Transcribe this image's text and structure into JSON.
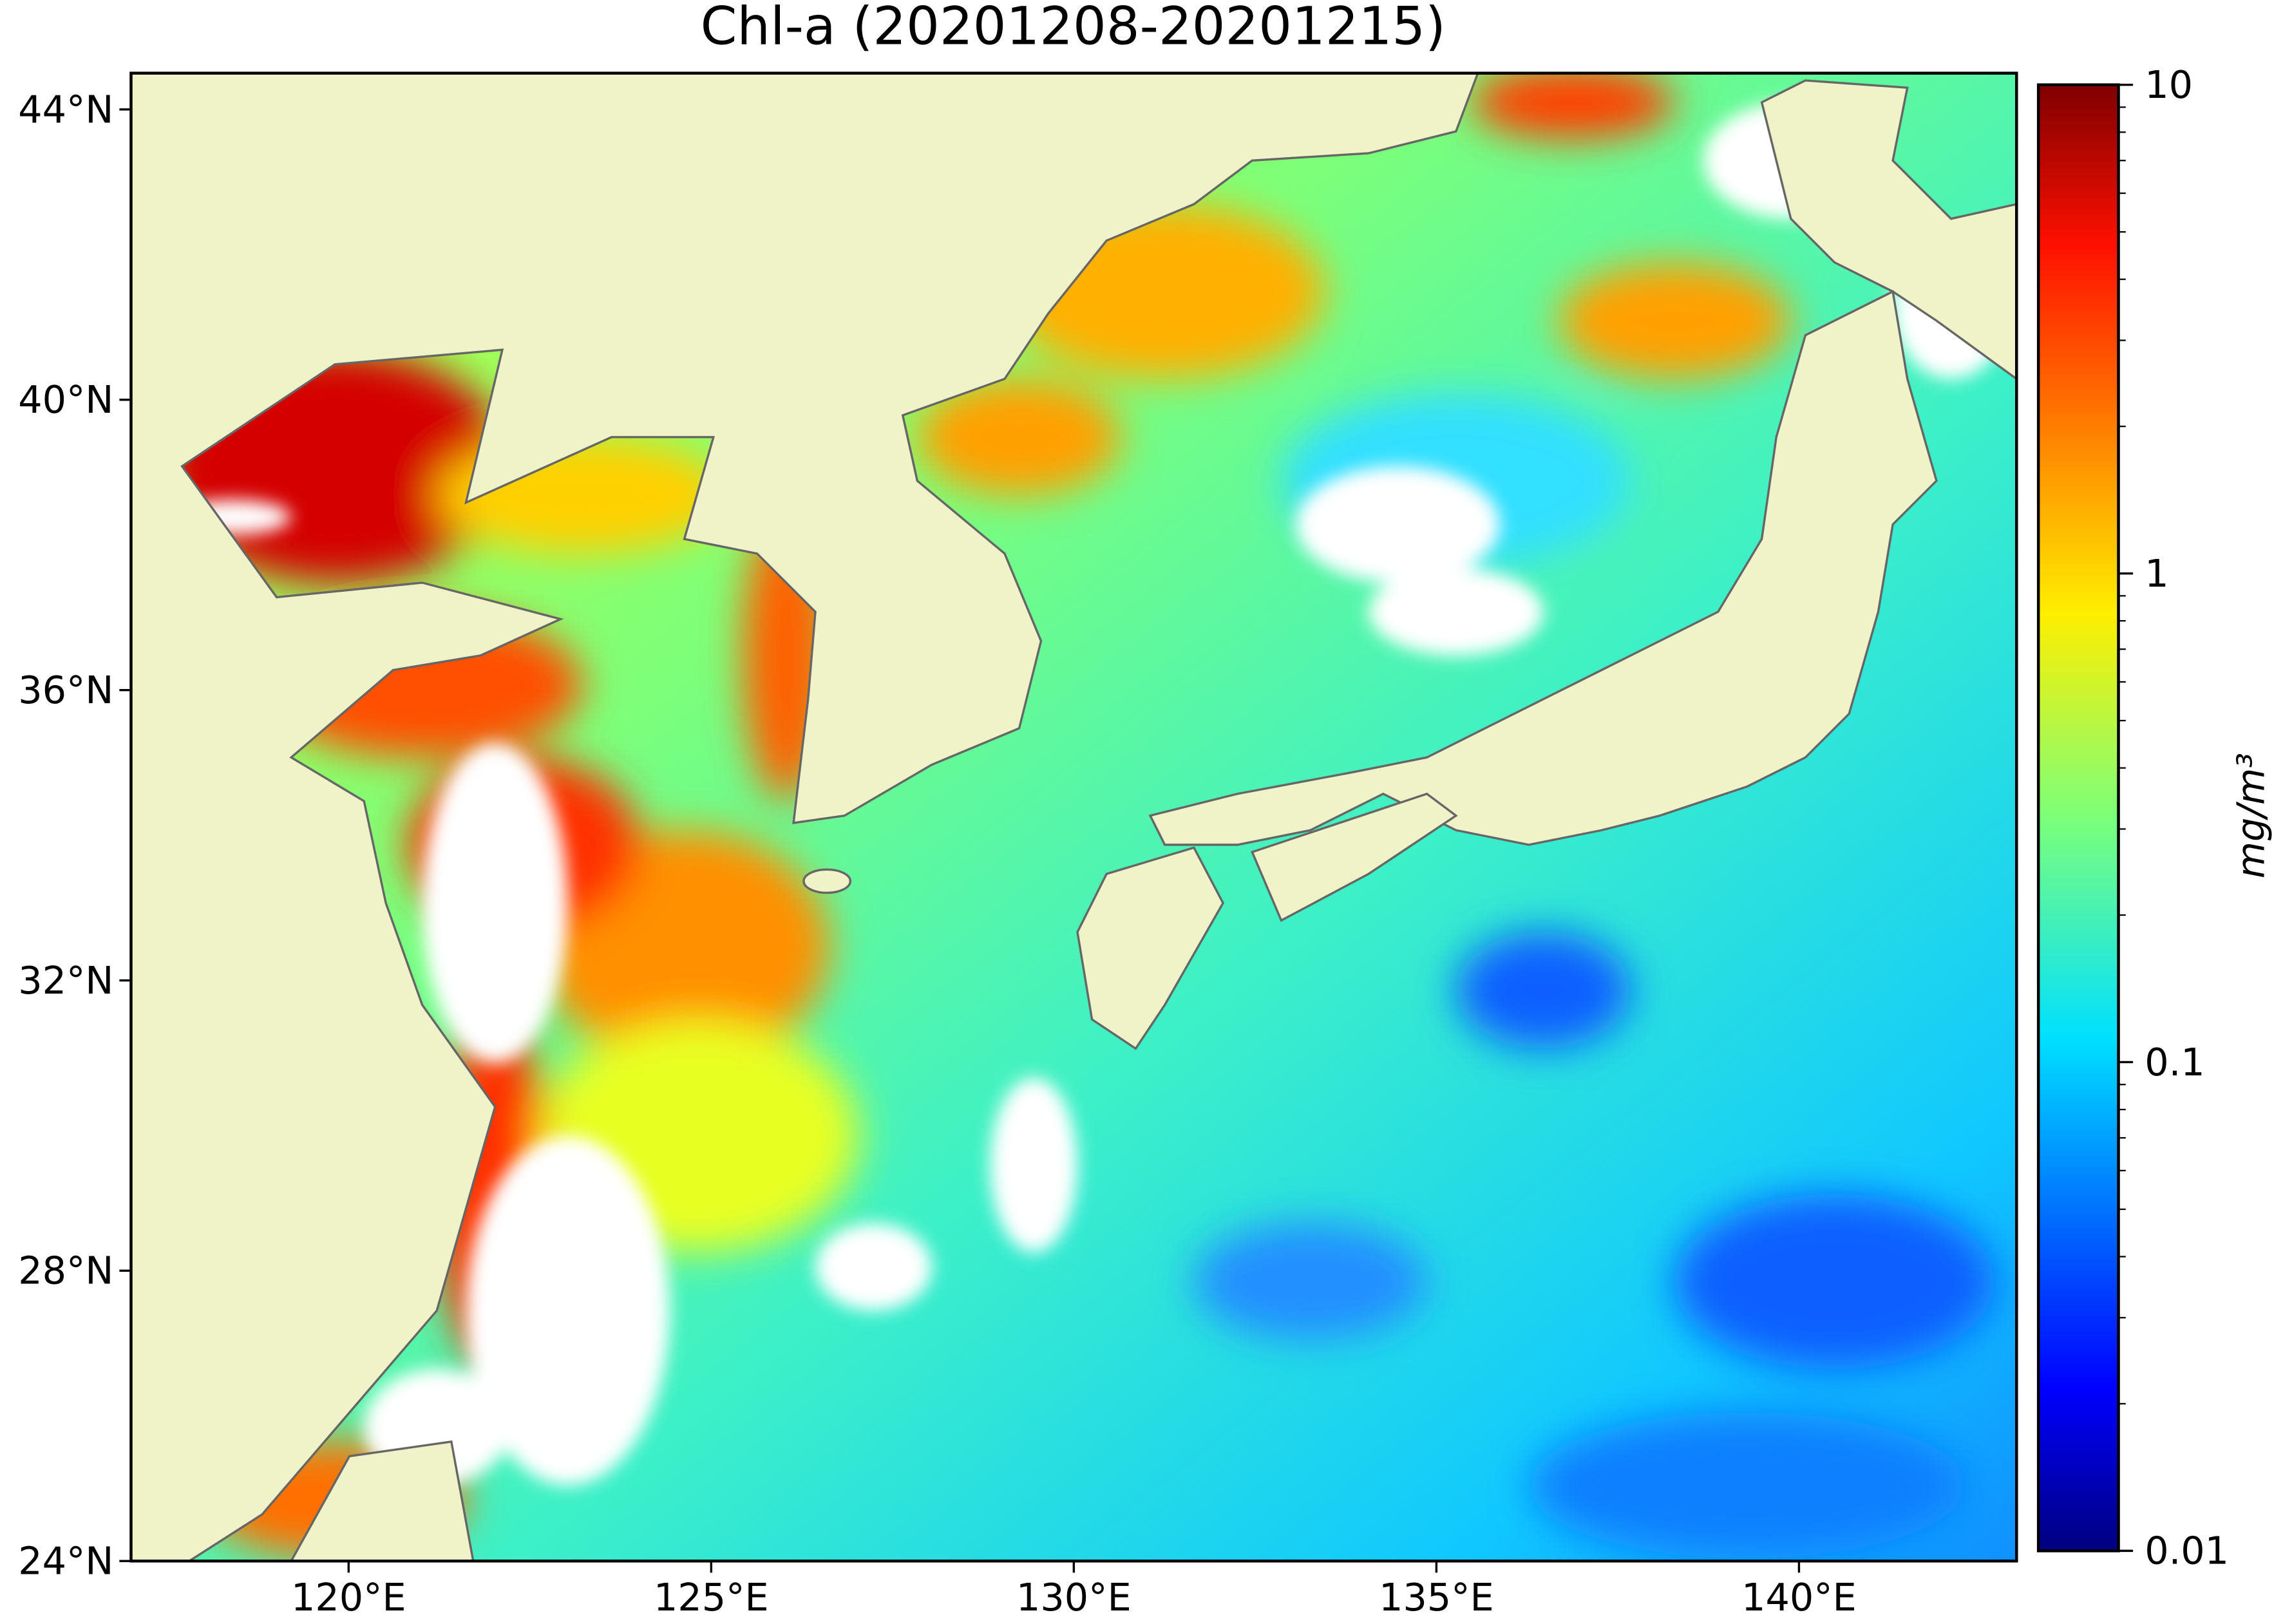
{
  "chart_data": {
    "type": "map",
    "title": "Chl-a (20201208-20201215)",
    "xlim": [
      117,
      143
    ],
    "ylim": [
      24,
      44.5
    ],
    "xticks": [
      {
        "value": 120,
        "label": "120°E"
      },
      {
        "value": 125,
        "label": "125°E"
      },
      {
        "value": 130,
        "label": "130°E"
      },
      {
        "value": 135,
        "label": "135°E"
      },
      {
        "value": 140,
        "label": "140°E"
      }
    ],
    "yticks": [
      {
        "value": 24,
        "label": "24°N"
      },
      {
        "value": 28,
        "label": "28°N"
      },
      {
        "value": 32,
        "label": "32°N"
      },
      {
        "value": 36,
        "label": "36°N"
      },
      {
        "value": 40,
        "label": "40°N"
      },
      {
        "value": 44,
        "label": "44°N"
      }
    ],
    "colorbar": {
      "label": "mg/m³",
      "colormap": "jet",
      "log": true,
      "lim": [
        0.01,
        10
      ],
      "ticks": [
        0.01,
        0.1,
        1,
        10
      ],
      "minor_ticks": [
        0.02,
        0.03,
        0.04,
        0.05,
        0.06,
        0.07,
        0.08,
        0.09,
        0.2,
        0.3,
        0.4,
        0.5,
        0.6,
        0.7,
        0.8,
        0.9,
        2,
        3,
        4,
        5,
        6,
        7,
        8,
        9
      ]
    }
  }
}
